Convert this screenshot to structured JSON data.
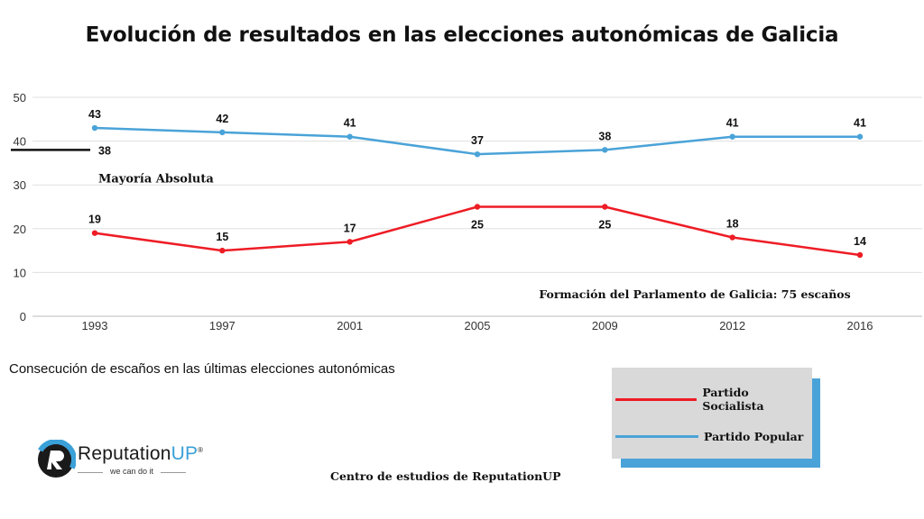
{
  "title": "Evolución de resultados en las elecciones autonómicas de Galicia",
  "subtitle": "Consecución de escaños en las últimas elecciones autonómicas",
  "source": "Centro de estudios de ReputationUP",
  "logo": {
    "name_main": "Reputation",
    "name_up": "UP",
    "tagline": "we can do it",
    "registered": "®"
  },
  "colors": {
    "socialista": "#ee1c25",
    "popular": "#4aa3d8",
    "grid": "#e0e0e0",
    "legend_bg": "#d9d9d9"
  },
  "chart_data": {
    "type": "line",
    "categories": [
      "1993",
      "1997",
      "2001",
      "2005",
      "2009",
      "2012",
      "2016"
    ],
    "series": [
      {
        "name": "Partido Socialista",
        "color": "#ee1c25",
        "values": [
          19,
          15,
          17,
          25,
          25,
          18,
          14
        ]
      },
      {
        "name": "Partido Popular",
        "color": "#4aa3d8",
        "values": [
          43,
          42,
          41,
          37,
          38,
          41,
          41
        ]
      }
    ],
    "ylim": [
      0,
      50
    ],
    "yticks": [
      "0",
      "10",
      "20",
      "30",
      "40",
      "50"
    ],
    "grid": true,
    "reference": {
      "value": 38,
      "value_label": "38",
      "label": "Mayoría Absoluta"
    },
    "annotation": "Formación del Parlamento de Galicia: 75 escaños",
    "legend": [
      "Partido Socialista",
      "Partido Popular"
    ]
  }
}
